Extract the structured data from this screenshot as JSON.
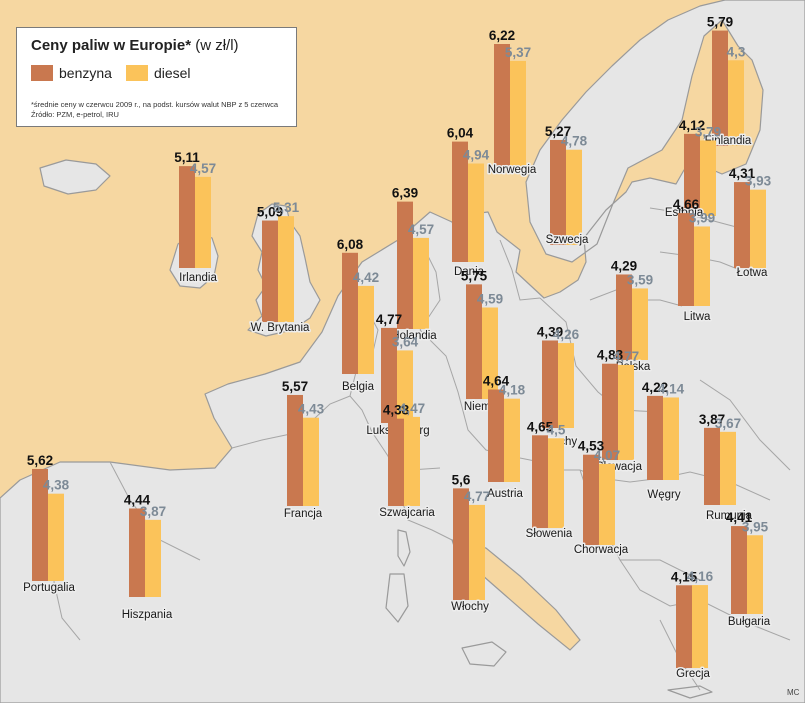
{
  "legend": {
    "title_bold": "Ceny paliw w Europie*",
    "title_unit": "(w zł/l)",
    "series_benzyna": "benzyna",
    "series_diesel": "diesel",
    "note_line1": "*średnie ceny w czerwcu 2009 r., na podst. kursów walut NBP z 5 czerwca",
    "note_line2": "Źródło: PZM, e-petrol, IRU"
  },
  "credit": "MC",
  "colors": {
    "benzyna": "#c9784f",
    "diesel": "#fbc35a",
    "sea": "#f6d7a1",
    "land": "#e6e6e6",
    "border": "#9a9a9a"
  },
  "chart_data": {
    "type": "bar",
    "title": "Ceny paliw w Europie* (w zł/l)",
    "categories": [
      "Finlandia",
      "Norwegia",
      "Szwecja",
      "Estonia",
      "Łotwa",
      "Litwa",
      "Dania",
      "Irlandia",
      "W. Brytania",
      "Holandia",
      "Belgia",
      "Luksemburg",
      "Niemcy",
      "Polska",
      "Czechy",
      "Słowacja",
      "Francja",
      "Austria",
      "Szwajcaria",
      "Słowenia",
      "Chorwacja",
      "Węgry",
      "Rumunia",
      "Włochy",
      "Portugalia",
      "Hiszpania",
      "Bułgaria",
      "Grecja"
    ],
    "series": [
      {
        "name": "benzyna",
        "values": [
          5.79,
          6.22,
          5.27,
          4.12,
          4.31,
          4.66,
          6.04,
          5.11,
          5.09,
          6.39,
          6.08,
          4.77,
          5.75,
          4.29,
          4.39,
          4.83,
          5.57,
          4.64,
          4.38,
          4.65,
          4.53,
          4.22,
          3.87,
          5.6,
          5.62,
          4.44,
          4.41,
          4.15
        ]
      },
      {
        "name": "diesel",
        "values": [
          4.3,
          5.37,
          4.78,
          3.79,
          3.93,
          3.99,
          4.94,
          4.57,
          5.31,
          4.57,
          4.42,
          3.64,
          4.59,
          3.59,
          4.26,
          4.77,
          4.43,
          4.18,
          4.47,
          4.5,
          4.07,
          4.14,
          3.67,
          4.77,
          4.38,
          3.87,
          3.95,
          4.16
        ]
      }
    ]
  }
}
